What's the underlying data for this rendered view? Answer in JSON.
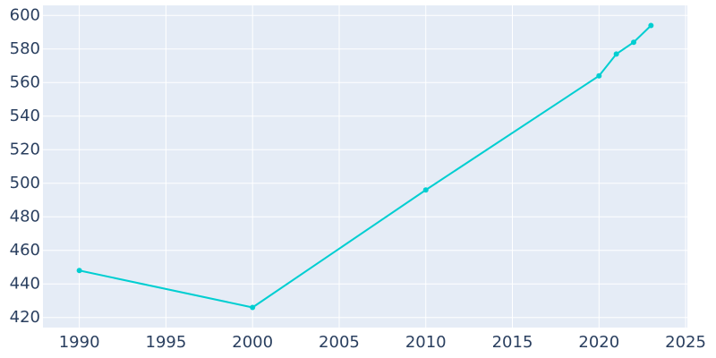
{
  "chart_data": {
    "type": "line",
    "x": [
      1990,
      2000,
      2010,
      2020,
      2021,
      2022,
      2023
    ],
    "series": [
      {
        "color": "#00ced1",
        "values": [
          448,
          426,
          496,
          564,
          577,
          584,
          594
        ]
      }
    ],
    "xlim": [
      1987.9,
      2025.1
    ],
    "xticks": [
      1990,
      1995,
      2000,
      2005,
      2010,
      2015,
      2020,
      2025
    ],
    "ylim": [
      414,
      606
    ],
    "yticks": [
      420,
      440,
      460,
      480,
      500,
      520,
      540,
      560,
      580,
      600
    ],
    "grid": true
  }
}
